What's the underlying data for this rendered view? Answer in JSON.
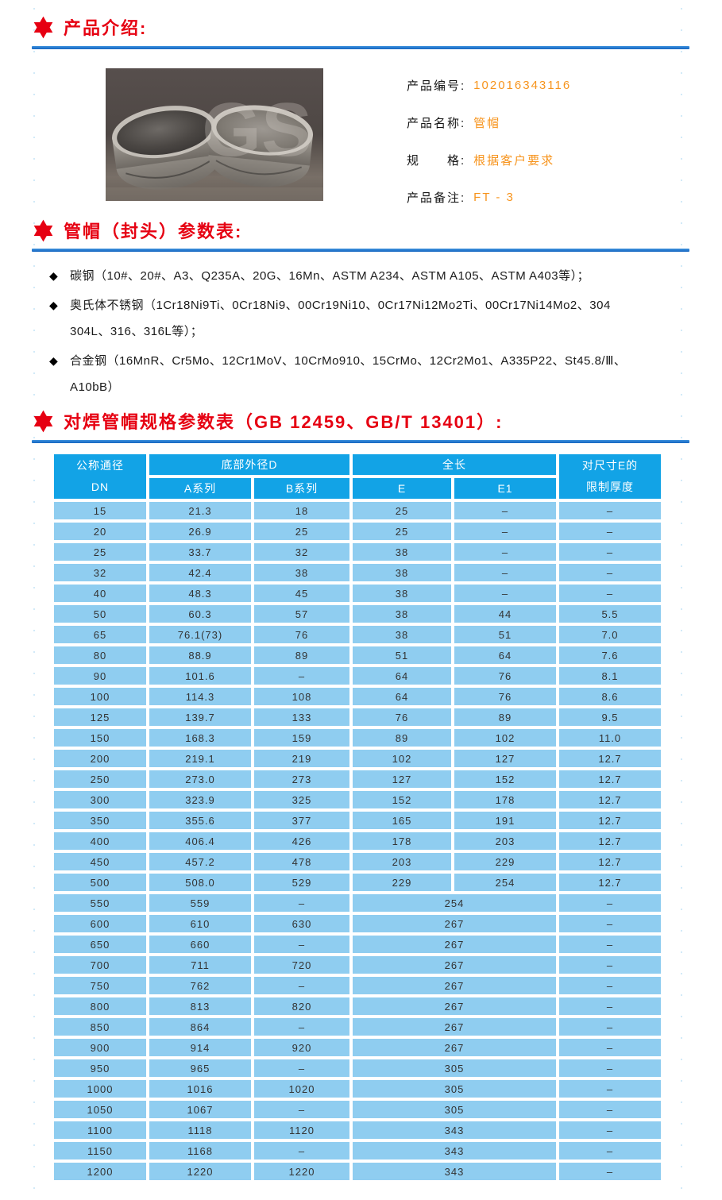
{
  "colors": {
    "accent_red": "#e60012",
    "accent_orange": "#f7941d",
    "rule_blue": "#1b76d2",
    "table_header_blue": "#12a3e6",
    "table_cell_blue": "#8fcdf0"
  },
  "sections": {
    "intro_title": "产品介绍:",
    "params_title": "管帽（封头）参数表:",
    "spec_title": "对焊管帽规格参数表（GB 12459、GB/T 13401）:"
  },
  "product": {
    "photo_watermark": "GS",
    "fields": [
      {
        "label": "产品编号:",
        "value": "102016343116"
      },
      {
        "label": "产品名称:",
        "value": "管帽"
      },
      {
        "label": "规　　格:",
        "value": "根据客户要求"
      },
      {
        "label": "产品备注:",
        "value": "FT - 3"
      }
    ]
  },
  "materials": [
    {
      "lines": [
        "碳钢（10#、20#、A3、Q235A、20G、16Mn、ASTM A234、ASTM A105、ASTM A403等）；",
        ""
      ]
    },
    {
      "lines": [
        "奥氏体不锈钢（1Cr18Ni9Ti、0Cr18Ni9、00Cr19Ni10、0Cr17Ni12Mo2Ti、00Cr17Ni14Mo2、304",
        "304L、316、316L等）；"
      ]
    },
    {
      "lines": [
        "合金钢（16MnR、Cr5Mo、12Cr1MoV、10CrMo910、15CrMo、12Cr2Mo1、A335P22、St45.8/Ⅲ、",
        "A10bB）"
      ]
    }
  ],
  "spec_table": {
    "header": {
      "dn_line1": "公称通径",
      "dn_line2": "DN",
      "d_group": "底部外径D",
      "a_series": "A系列",
      "b_series": "B系列",
      "length_group": "全长",
      "e": "E",
      "e1": "E1",
      "t_line1": "对尺寸E的",
      "t_line2": "限制厚度"
    },
    "rows": [
      [
        "15",
        "21.3",
        "18",
        "25",
        "–",
        "–"
      ],
      [
        "20",
        "26.9",
        "25",
        "25",
        "–",
        "–"
      ],
      [
        "25",
        "33.7",
        "32",
        "38",
        "–",
        "–"
      ],
      [
        "32",
        "42.4",
        "38",
        "38",
        "–",
        "–"
      ],
      [
        "40",
        "48.3",
        "45",
        "38",
        "–",
        "–"
      ],
      [
        "50",
        "60.3",
        "57",
        "38",
        "44",
        "5.5"
      ],
      [
        "65",
        "76.1(73)",
        "76",
        "38",
        "51",
        "7.0"
      ],
      [
        "80",
        "88.9",
        "89",
        "51",
        "64",
        "7.6"
      ],
      [
        "90",
        "101.6",
        "–",
        "64",
        "76",
        "8.1"
      ],
      [
        "100",
        "114.3",
        "108",
        "64",
        "76",
        "8.6"
      ],
      [
        "125",
        "139.7",
        "133",
        "76",
        "89",
        "9.5"
      ],
      [
        "150",
        "168.3",
        "159",
        "89",
        "102",
        "11.0"
      ],
      [
        "200",
        "219.1",
        "219",
        "102",
        "127",
        "12.7"
      ],
      [
        "250",
        "273.0",
        "273",
        "127",
        "152",
        "12.7"
      ],
      [
        "300",
        "323.9",
        "325",
        "152",
        "178",
        "12.7"
      ],
      [
        "350",
        "355.6",
        "377",
        "165",
        "191",
        "12.7"
      ],
      [
        "400",
        "406.4",
        "426",
        "178",
        "203",
        "12.7"
      ],
      [
        "450",
        "457.2",
        "478",
        "203",
        "229",
        "12.7"
      ],
      [
        "500",
        "508.0",
        "529",
        "229",
        "254",
        "12.7"
      ],
      [
        "550",
        "559",
        "–",
        "254",
        null,
        "–"
      ],
      [
        "600",
        "610",
        "630",
        "267",
        null,
        "–"
      ],
      [
        "650",
        "660",
        "–",
        "267",
        null,
        "–"
      ],
      [
        "700",
        "711",
        "720",
        "267",
        null,
        "–"
      ],
      [
        "750",
        "762",
        "–",
        "267",
        null,
        "–"
      ],
      [
        "800",
        "813",
        "820",
        "267",
        null,
        "–"
      ],
      [
        "850",
        "864",
        "–",
        "267",
        null,
        "–"
      ],
      [
        "900",
        "914",
        "920",
        "267",
        null,
        "–"
      ],
      [
        "950",
        "965",
        "–",
        "305",
        null,
        "–"
      ],
      [
        "1000",
        "1016",
        "1020",
        "305",
        null,
        "–"
      ],
      [
        "1050",
        "1067",
        "–",
        "305",
        null,
        "–"
      ],
      [
        "1100",
        "1118",
        "1120",
        "343",
        null,
        "–"
      ],
      [
        "1150",
        "1168",
        "–",
        "343",
        null,
        "–"
      ],
      [
        "1200",
        "1220",
        "1220",
        "343",
        null,
        "–"
      ]
    ]
  }
}
